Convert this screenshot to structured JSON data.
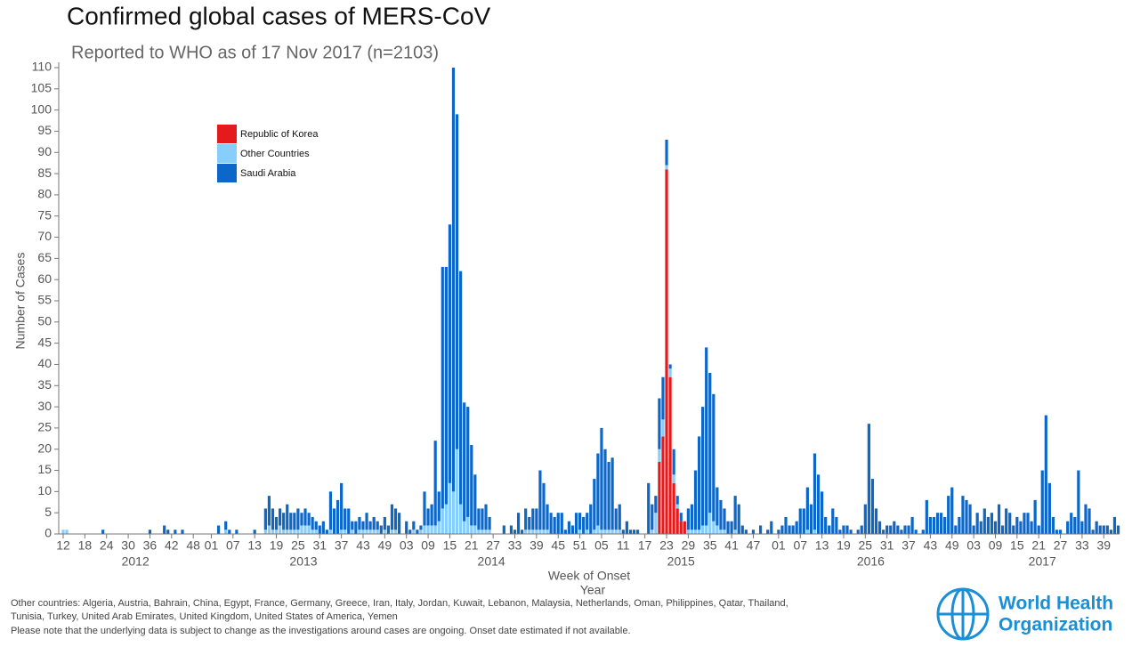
{
  "chart_data": {
    "type": "bar",
    "stacked": true,
    "title": "Confirmed global cases of MERS-CoV",
    "subtitle": "Reported to WHO as of 17 Nov 2017 (n=2103)",
    "ylabel": "Number of Cases",
    "xlabel": "Week of Onset",
    "xlabel2": "Year",
    "ylim": [
      0,
      110
    ],
    "yticks": [
      0,
      5,
      10,
      15,
      20,
      25,
      30,
      35,
      40,
      45,
      50,
      55,
      60,
      65,
      70,
      75,
      80,
      85,
      90,
      95,
      100,
      105,
      110
    ],
    "years": [
      "2012",
      "2013",
      "2014",
      "2015",
      "2016",
      "2017"
    ],
    "categories": [
      "12",
      null,
      null,
      null,
      null,
      null,
      "18",
      null,
      null,
      null,
      null,
      null,
      "24",
      null,
      null,
      null,
      null,
      null,
      "30",
      null,
      null,
      null,
      null,
      null,
      "36",
      null,
      null,
      null,
      null,
      null,
      "42",
      null,
      null,
      null,
      null,
      null,
      "48",
      null,
      null,
      null,
      null,
      "01",
      null,
      null,
      null,
      null,
      null,
      "07",
      null,
      null,
      null,
      null,
      null,
      "13",
      null,
      null,
      null,
      null,
      null,
      "19",
      null,
      null,
      null,
      null,
      null,
      "25",
      null,
      null,
      null,
      null,
      null,
      "31",
      null,
      null,
      null,
      null,
      null,
      "37",
      null,
      null,
      null,
      null,
      null,
      "43",
      null,
      null,
      null,
      null,
      null,
      "49",
      null,
      null,
      null,
      null,
      null,
      "03",
      null,
      null,
      null,
      null,
      null,
      "09",
      null,
      null,
      null,
      null,
      null,
      "15",
      null,
      null,
      null,
      null,
      null,
      "21",
      null,
      null,
      null,
      null,
      null,
      "27",
      null,
      null,
      null,
      null,
      null,
      "33",
      null,
      null,
      null,
      null,
      null,
      "39",
      null,
      null,
      null,
      null,
      null,
      "45",
      null,
      null,
      null,
      null,
      null,
      "51",
      null,
      null,
      null,
      null,
      null,
      "05",
      null,
      null,
      null,
      null,
      null,
      "11",
      null,
      null,
      null,
      null,
      null,
      "17",
      null,
      null,
      null,
      null,
      null,
      "23",
      null,
      null,
      null,
      null,
      null,
      "29",
      null,
      null,
      null,
      null,
      null,
      "35",
      null,
      null,
      null,
      null,
      null,
      "41",
      null,
      null,
      null,
      null,
      null,
      "47",
      null,
      null,
      null,
      null,
      null,
      null,
      "01",
      null,
      null,
      null,
      null,
      null,
      "07",
      null,
      null,
      null,
      null,
      null,
      "13",
      null,
      null,
      null,
      null,
      null,
      "19",
      null,
      null,
      null,
      null,
      null,
      "25",
      null,
      null,
      null,
      null,
      null,
      "31",
      null,
      null,
      null,
      null,
      null,
      "37",
      null,
      null,
      null,
      null,
      null,
      "43",
      null,
      null,
      null,
      null,
      null,
      "49",
      null,
      null,
      null,
      null,
      null,
      "03",
      null,
      null,
      null,
      null,
      null,
      "09",
      null,
      null,
      null,
      null,
      null,
      "15",
      null,
      null,
      null,
      null,
      null,
      "21",
      null,
      null,
      null,
      null,
      null,
      "27",
      null,
      null,
      null,
      null,
      null,
      "33",
      null,
      null,
      null,
      null,
      null,
      "39",
      null,
      null,
      null,
      null
    ],
    "series": [
      {
        "name": "Republic of Korea",
        "color": "#e41a1c",
        "values": [
          0,
          0,
          0,
          0,
          0,
          0,
          0,
          0,
          0,
          0,
          0,
          0,
          0,
          0,
          0,
          0,
          0,
          0,
          0,
          0,
          0,
          0,
          0,
          0,
          0,
          0,
          0,
          0,
          0,
          0,
          0,
          0,
          0,
          0,
          0,
          0,
          0,
          0,
          0,
          0,
          0,
          0,
          0,
          0,
          0,
          0,
          0,
          0,
          0,
          0,
          0,
          0,
          0,
          0,
          0,
          0,
          0,
          0,
          0,
          0,
          0,
          0,
          0,
          0,
          0,
          0,
          0,
          0,
          0,
          0,
          0,
          0,
          0,
          0,
          0,
          0,
          0,
          0,
          0,
          0,
          0,
          0,
          0,
          0,
          0,
          0,
          0,
          0,
          0,
          0,
          0,
          0,
          0,
          0,
          0,
          0,
          0,
          0,
          0,
          0,
          0,
          0,
          0,
          0,
          0,
          0,
          0,
          0,
          0,
          0,
          0,
          0,
          0,
          0,
          0,
          0,
          0,
          0,
          0,
          0,
          0,
          0,
          0,
          0,
          0,
          0,
          0,
          0,
          0,
          0,
          0,
          0,
          0,
          0,
          0,
          0,
          0,
          0,
          0,
          0,
          0,
          0,
          0,
          0,
          0,
          0,
          0,
          0,
          0,
          0,
          0,
          0,
          0,
          0,
          0,
          0,
          0,
          0,
          0,
          0,
          0,
          0,
          0,
          0,
          0,
          17,
          23,
          86,
          37,
          12,
          6,
          3,
          3,
          0,
          0,
          0,
          0,
          0,
          0,
          0,
          0,
          0,
          0,
          0,
          0,
          0,
          0,
          0,
          0,
          0,
          0,
          0,
          0,
          0,
          0,
          0,
          0,
          0,
          0,
          0,
          0,
          0,
          0,
          0,
          0,
          0,
          0,
          0,
          0,
          0,
          0,
          0,
          0,
          0,
          0,
          0,
          0,
          0,
          0,
          0,
          0,
          0,
          0,
          0,
          0,
          0,
          0,
          0,
          0,
          0,
          0,
          0,
          0,
          0,
          0,
          0,
          0,
          0,
          0,
          0,
          0,
          0,
          0,
          0,
          0,
          0,
          0,
          0,
          0,
          0,
          0,
          0,
          0,
          0,
          0,
          0,
          0,
          0,
          0,
          0,
          0,
          0,
          0,
          0,
          0,
          0,
          0,
          0,
          0,
          0,
          0,
          0,
          0,
          0,
          0,
          0,
          0,
          0,
          0,
          0,
          0,
          0,
          0,
          0,
          0,
          0,
          0,
          0,
          0,
          0,
          0,
          0,
          0
        ]
      },
      {
        "name": "Other Countries",
        "color": "#87cefa",
        "values": [
          1,
          1,
          0,
          0,
          0,
          0,
          0,
          0,
          0,
          0,
          0,
          0,
          0,
          0,
          0,
          0,
          0,
          0,
          0,
          0,
          0,
          0,
          0,
          0,
          0,
          0,
          0,
          0,
          0,
          0,
          0,
          0,
          0,
          0,
          0,
          0,
          0,
          0,
          0,
          0,
          0,
          0,
          0,
          0,
          0,
          1,
          0,
          0,
          0,
          0,
          0,
          0,
          0,
          0,
          0,
          0,
          1,
          2,
          1,
          1,
          2,
          1,
          1,
          1,
          1,
          1,
          2,
          2,
          2,
          1,
          1,
          0,
          0,
          0,
          1,
          0,
          0,
          1,
          1,
          0,
          1,
          0,
          1,
          1,
          1,
          1,
          1,
          1,
          0,
          1,
          0,
          1,
          1,
          0,
          0,
          0,
          0,
          1,
          0,
          1,
          2,
          2,
          2,
          2,
          3,
          6,
          7,
          12,
          10,
          20,
          7,
          3,
          4,
          2,
          2,
          1,
          1,
          1,
          1,
          0,
          0,
          0,
          0,
          0,
          0,
          0,
          0,
          0,
          1,
          1,
          1,
          1,
          1,
          1,
          1,
          0,
          0,
          0,
          0,
          0,
          0,
          0,
          0,
          1,
          0,
          1,
          0,
          1,
          2,
          1,
          1,
          1,
          1,
          1,
          1,
          0,
          0,
          0,
          0,
          0,
          0,
          0,
          0,
          1,
          5,
          3,
          4,
          1,
          2,
          2,
          1,
          0,
          0,
          1,
          1,
          1,
          1,
          2,
          2,
          5,
          3,
          2,
          1,
          1,
          0,
          0,
          1,
          0,
          0,
          0,
          0,
          0,
          0,
          0,
          0,
          0,
          0,
          0,
          0,
          0,
          0,
          0,
          0,
          0,
          0,
          0,
          1,
          0,
          1,
          0,
          0,
          0,
          0,
          0,
          0,
          0,
          0,
          0,
          0,
          0,
          0,
          0,
          0,
          0,
          0,
          0,
          0,
          0,
          0,
          0,
          0,
          0,
          0,
          0,
          0,
          0,
          0,
          0,
          0,
          0,
          0,
          0,
          0,
          0,
          0,
          0,
          0,
          0,
          0,
          0,
          0,
          0,
          0,
          0,
          0,
          0,
          0,
          0,
          0,
          0,
          0,
          0,
          0,
          0,
          0,
          0,
          0,
          0,
          0,
          0,
          0,
          0,
          0,
          0,
          0,
          0,
          0,
          0,
          0,
          0,
          0,
          0,
          0,
          0,
          0,
          0,
          0,
          0,
          0,
          0,
          0,
          0,
          0
        ]
      },
      {
        "name": "Saudi Arabia",
        "color": "#0d67c8",
        "values": [
          0,
          0,
          0,
          0,
          0,
          0,
          0,
          0,
          0,
          0,
          0,
          1,
          0,
          0,
          0,
          0,
          0,
          0,
          0,
          0,
          0,
          0,
          0,
          0,
          1,
          0,
          0,
          0,
          2,
          1,
          0,
          1,
          0,
          1,
          0,
          0,
          0,
          0,
          0,
          0,
          0,
          0,
          0,
          2,
          0,
          2,
          1,
          0,
          1,
          0,
          0,
          0,
          0,
          1,
          0,
          0,
          5,
          7,
          5,
          3,
          4,
          4,
          6,
          4,
          4,
          5,
          3,
          4,
          3,
          3,
          2,
          2,
          3,
          1,
          9,
          6,
          8,
          11,
          5,
          6,
          2,
          3,
          3,
          2,
          4,
          2,
          3,
          2,
          2,
          3,
          2,
          6,
          5,
          5,
          0,
          3,
          1,
          2,
          1,
          1,
          8,
          4,
          5,
          20,
          7,
          57,
          56,
          61,
          100,
          79,
          55,
          28,
          26,
          19,
          12,
          5,
          5,
          6,
          3,
          0,
          0,
          0,
          2,
          0,
          2,
          1,
          5,
          1,
          5,
          3,
          5,
          5,
          14,
          11,
          6,
          5,
          4,
          5,
          5,
          1,
          3,
          2,
          5,
          4,
          4,
          4,
          7,
          12,
          17,
          24,
          19,
          16,
          17,
          5,
          6,
          1,
          3,
          1,
          1,
          1,
          0,
          0,
          12,
          6,
          4,
          12,
          10,
          6,
          1,
          6,
          2,
          2,
          0,
          5,
          6,
          14,
          22,
          28,
          42,
          33,
          30,
          9,
          7,
          5,
          3,
          3,
          8,
          7,
          2,
          1,
          0,
          1,
          0,
          2,
          0,
          1,
          3,
          0,
          1,
          2,
          4,
          2,
          2,
          3,
          6,
          6,
          10,
          7,
          18,
          14,
          10,
          4,
          2,
          6,
          4,
          1,
          2,
          2,
          1,
          0,
          1,
          2,
          7,
          26,
          13,
          6,
          3,
          1,
          2,
          2,
          3,
          2,
          1,
          2,
          2,
          4,
          1,
          0,
          1,
          8,
          4,
          4,
          5,
          5,
          4,
          9,
          11,
          2,
          4,
          9,
          8,
          7,
          2,
          5,
          3,
          6,
          4,
          5,
          3,
          7,
          2,
          6,
          5,
          2,
          4,
          3,
          5,
          5,
          3,
          8,
          2,
          15,
          28,
          12,
          4,
          1,
          1,
          0,
          3,
          5,
          4,
          15,
          3,
          7,
          6,
          1,
          3,
          2,
          2,
          2,
          1,
          4,
          2
        ]
      }
    ],
    "notes": [
      "Other countries: Algeria, Austria, Bahrain, China, Egypt, France, Germany, Greece, Iran, Italy, Jordan, Kuwait, Lebanon, Malaysia, Netherlands, Oman, Philippines, Qatar, Thailand,",
      "Tunisia, Turkey, United Arab Emirates, United Kingdom, United States of America, Yemen",
      "Please note that the underlying data is subject to change as the investigations around cases are ongoing. Onset date estimated if not available."
    ],
    "logo": [
      "World Health",
      "Organization"
    ]
  }
}
